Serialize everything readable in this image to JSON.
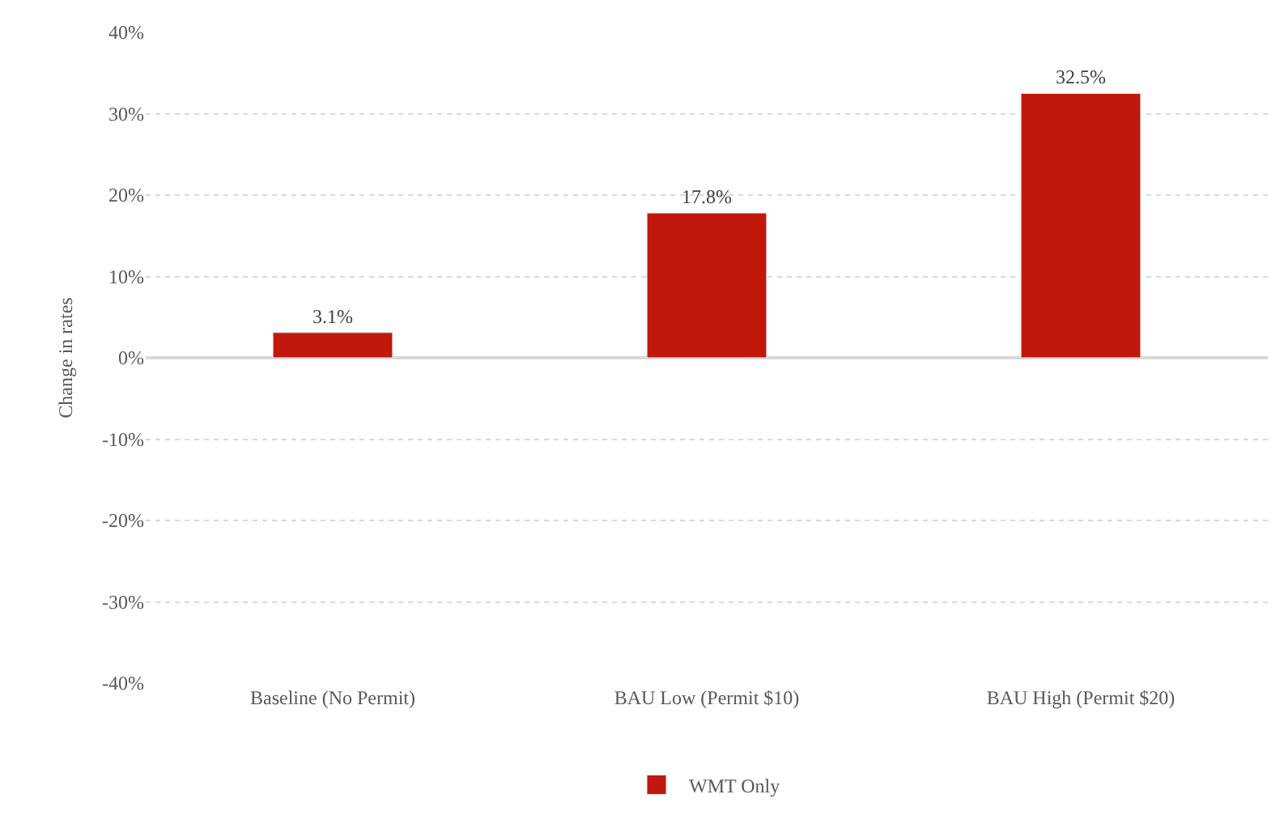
{
  "chart_data": {
    "type": "bar",
    "ylabel": "Change in rates",
    "categories": [
      "Baseline (No Permit)",
      "BAU Low (Permit $10)",
      "BAU High (Permit $20)"
    ],
    "series": [
      {
        "name": "WMT Only",
        "color": "#c0180a",
        "values": [
          3.1,
          17.8,
          32.5
        ],
        "value_labels": [
          "3.1%",
          "17.8%",
          "32.5%"
        ]
      }
    ],
    "ylim": [
      -40,
      40
    ],
    "yticks": [
      {
        "value": -40,
        "label": "-40%"
      },
      {
        "value": -30,
        "label": "-30%"
      },
      {
        "value": -20,
        "label": "-20%"
      },
      {
        "value": -10,
        "label": "-10%"
      },
      {
        "value": 0,
        "label": "0%"
      },
      {
        "value": 10,
        "label": "10%"
      },
      {
        "value": 20,
        "label": "20%"
      },
      {
        "value": 30,
        "label": "30%"
      },
      {
        "value": 40,
        "label": "40%"
      }
    ],
    "grid": "y",
    "legend": "bottom"
  }
}
